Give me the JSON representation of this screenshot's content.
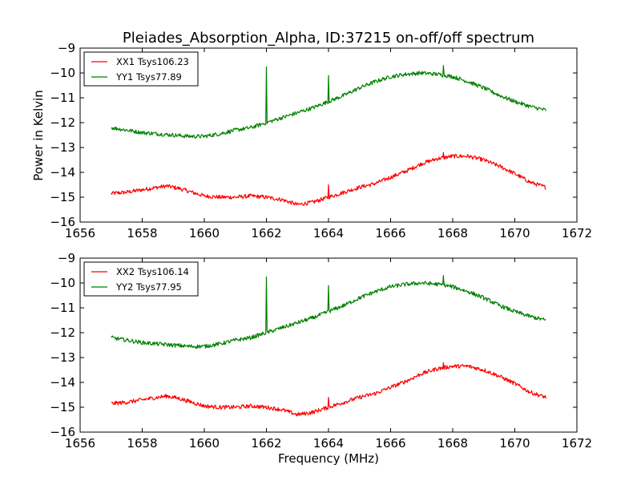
{
  "chart_data": {
    "type": "line",
    "title": "Pleiades_Absorption_Alpha, ID:37215 on-off/off spectrum",
    "xlabel": "Frequency (MHz)",
    "xlim": [
      1656,
      1672
    ],
    "x_ticks": [
      1656,
      1658,
      1660,
      1662,
      1664,
      1666,
      1668,
      1670,
      1672
    ],
    "panels": [
      {
        "ylabel": "Power in Kelvin",
        "ylim": [
          -16,
          -9
        ],
        "y_ticks": [
          -16,
          -15,
          -14,
          -13,
          -12,
          -11,
          -10,
          -9
        ],
        "legend_position": "top-left",
        "series": [
          {
            "name": "XX1 Tsys106.23",
            "color": "#ff0000",
            "x": [
              1657.0,
              1657.5,
              1658.0,
              1658.5,
              1658.8,
              1659.2,
              1659.6,
              1660.0,
              1660.5,
              1661.0,
              1661.5,
              1662.0,
              1662.5,
              1663.0,
              1663.5,
              1664.0,
              1664.5,
              1665.0,
              1665.5,
              1666.0,
              1666.5,
              1667.0,
              1667.5,
              1668.0,
              1668.5,
              1669.0,
              1669.5,
              1670.0,
              1670.5,
              1671.0
            ],
            "y": [
              -14.85,
              -14.8,
              -14.7,
              -14.6,
              -14.55,
              -14.65,
              -14.8,
              -14.95,
              -15.0,
              -15.0,
              -14.95,
              -15.0,
              -15.1,
              -15.3,
              -15.2,
              -15.0,
              -14.8,
              -14.6,
              -14.45,
              -14.2,
              -13.95,
              -13.65,
              -13.45,
              -13.35,
              -13.35,
              -13.5,
              -13.75,
              -14.05,
              -14.4,
              -14.6
            ],
            "spikes": [
              {
                "x": 1664.0,
                "y": -14.5
              },
              {
                "x": 1667.7,
                "y": -13.2
              }
            ]
          },
          {
            "name": "YY1 Tsys77.89",
            "color": "#008000",
            "x": [
              1657.0,
              1657.5,
              1658.0,
              1658.5,
              1659.0,
              1659.5,
              1660.0,
              1660.5,
              1661.0,
              1661.5,
              1662.0,
              1662.5,
              1663.0,
              1663.5,
              1664.0,
              1664.5,
              1665.0,
              1665.5,
              1666.0,
              1666.5,
              1667.0,
              1667.5,
              1668.0,
              1668.5,
              1669.0,
              1669.5,
              1670.0,
              1670.5,
              1671.0
            ],
            "y": [
              -12.2,
              -12.3,
              -12.4,
              -12.45,
              -12.5,
              -12.55,
              -12.55,
              -12.45,
              -12.3,
              -12.2,
              -12.0,
              -11.8,
              -11.6,
              -11.4,
              -11.15,
              -10.9,
              -10.6,
              -10.35,
              -10.15,
              -10.05,
              -10.0,
              -10.05,
              -10.15,
              -10.35,
              -10.6,
              -10.9,
              -11.15,
              -11.35,
              -11.5
            ],
            "spikes": [
              {
                "x": 1662.0,
                "y": -9.75
              },
              {
                "x": 1664.0,
                "y": -10.1
              },
              {
                "x": 1667.7,
                "y": -9.7
              }
            ]
          }
        ]
      },
      {
        "ylabel": "",
        "ylim": [
          -16,
          -9
        ],
        "y_ticks": [
          -16,
          -15,
          -14,
          -13,
          -12,
          -11,
          -10,
          -9
        ],
        "legend_position": "top-left",
        "series": [
          {
            "name": "XX2 Tsys106.14",
            "color": "#ff0000",
            "x": [
              1657.0,
              1657.5,
              1658.0,
              1658.5,
              1658.8,
              1659.2,
              1659.6,
              1660.0,
              1660.5,
              1661.0,
              1661.5,
              1662.0,
              1662.5,
              1663.0,
              1663.5,
              1664.0,
              1664.5,
              1665.0,
              1665.5,
              1666.0,
              1666.5,
              1667.0,
              1667.5,
              1668.0,
              1668.5,
              1669.0,
              1669.5,
              1670.0,
              1670.5,
              1671.0
            ],
            "y": [
              -14.85,
              -14.8,
              -14.7,
              -14.6,
              -14.55,
              -14.65,
              -14.8,
              -14.95,
              -15.0,
              -15.0,
              -14.95,
              -15.0,
              -15.1,
              -15.3,
              -15.2,
              -15.0,
              -14.8,
              -14.6,
              -14.45,
              -14.2,
              -13.95,
              -13.65,
              -13.45,
              -13.35,
              -13.35,
              -13.5,
              -13.75,
              -14.05,
              -14.4,
              -14.6
            ],
            "spikes": [
              {
                "x": 1664.0,
                "y": -14.6
              },
              {
                "x": 1667.7,
                "y": -13.2
              }
            ]
          },
          {
            "name": "YY2 Tsys77.95",
            "color": "#008000",
            "x": [
              1657.0,
              1657.5,
              1658.0,
              1658.5,
              1659.0,
              1659.5,
              1660.0,
              1660.5,
              1661.0,
              1661.5,
              1662.0,
              1662.5,
              1663.0,
              1663.5,
              1664.0,
              1664.5,
              1665.0,
              1665.5,
              1666.0,
              1666.5,
              1667.0,
              1667.5,
              1668.0,
              1668.5,
              1669.0,
              1669.5,
              1670.0,
              1670.5,
              1671.0
            ],
            "y": [
              -12.2,
              -12.3,
              -12.4,
              -12.45,
              -12.5,
              -12.55,
              -12.55,
              -12.45,
              -12.3,
              -12.2,
              -12.0,
              -11.8,
              -11.6,
              -11.4,
              -11.15,
              -10.9,
              -10.6,
              -10.35,
              -10.15,
              -10.05,
              -10.0,
              -10.05,
              -10.15,
              -10.35,
              -10.6,
              -10.9,
              -11.15,
              -11.35,
              -11.5
            ],
            "spikes": [
              {
                "x": 1662.0,
                "y": -9.75
              },
              {
                "x": 1664.0,
                "y": -10.1
              },
              {
                "x": 1667.7,
                "y": -9.7
              }
            ]
          }
        ]
      }
    ]
  }
}
